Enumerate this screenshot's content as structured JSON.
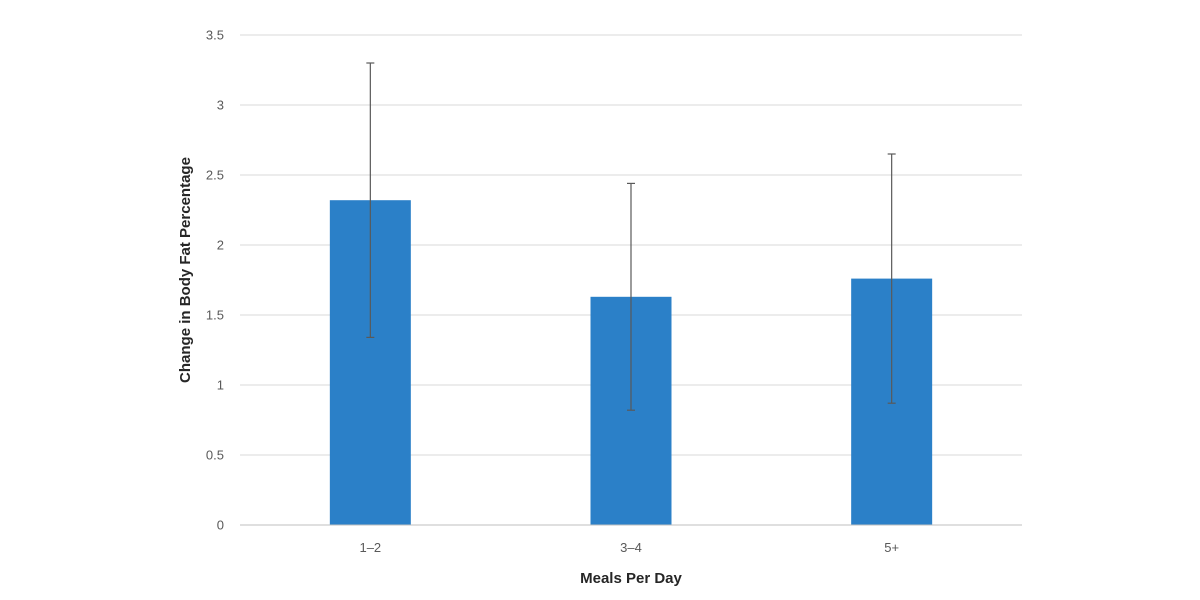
{
  "chart_data": {
    "type": "bar",
    "title": "",
    "xlabel": "Meals Per Day",
    "ylabel": "Change in Body Fat Percentage",
    "categories": [
      "1–2",
      "3–4",
      "5+"
    ],
    "values": [
      2.32,
      1.63,
      1.76
    ],
    "error_bars": {
      "upper": [
        3.3,
        2.44,
        2.65
      ],
      "lower": [
        1.34,
        0.82,
        0.87
      ]
    },
    "ylim": [
      0,
      3.5
    ],
    "yticks": [
      0,
      0.5,
      1,
      1.5,
      2,
      2.5,
      3,
      3.5
    ],
    "ytick_labels": [
      "0",
      "0.5",
      "1",
      "1.5",
      "2",
      "2.5",
      "3",
      "3.5"
    ],
    "grid": true,
    "legend": "none",
    "bar_color": "#2b80c8"
  }
}
